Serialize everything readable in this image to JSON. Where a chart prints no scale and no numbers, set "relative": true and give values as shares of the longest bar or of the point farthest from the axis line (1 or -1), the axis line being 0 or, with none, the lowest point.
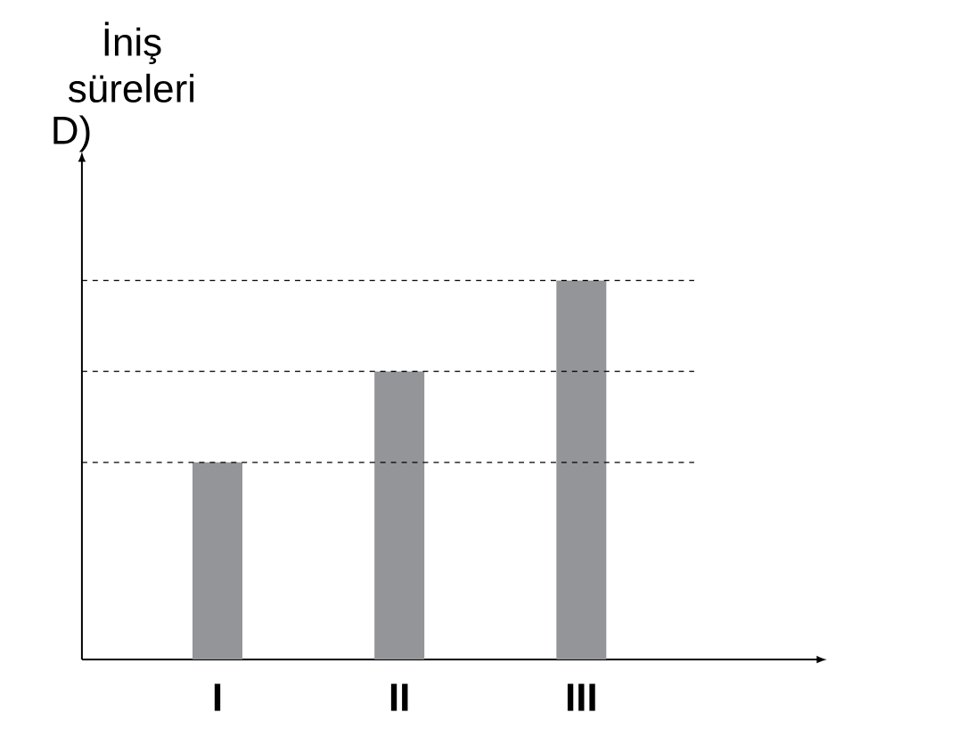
{
  "chart_data": {
    "type": "bar",
    "ylabel": "İniş süreleri",
    "categories": [
      "I",
      "II",
      "III"
    ],
    "values": [
      0.52,
      0.76,
      1
    ],
    "color": "#939598",
    "relative": true,
    "ref_lines": [
      {
        "axis": "y",
        "value": 0.52,
        "line_style": "dashed"
      },
      {
        "axis": "y",
        "value": 0.76,
        "line_style": "dashed"
      },
      {
        "axis": "y",
        "value": 1,
        "line_style": "dashed"
      }
    ],
    "annotations": [
      "D)"
    ]
  }
}
